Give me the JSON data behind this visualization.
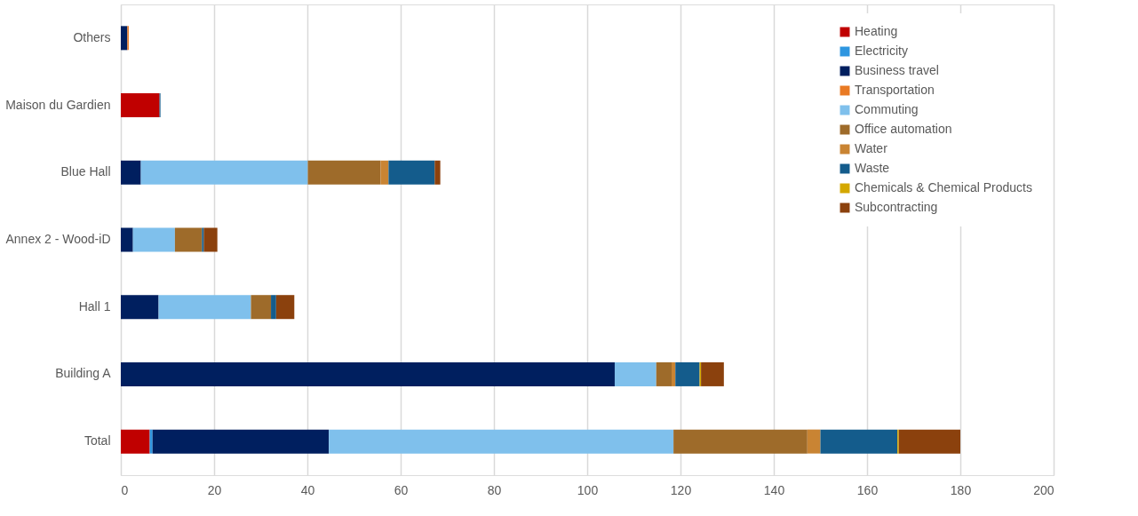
{
  "chart_data": {
    "type": "bar",
    "orientation": "horizontal",
    "stacked": true,
    "categories": [
      "Others",
      "Maison du Gardien",
      "Blue Hall",
      "Annex 2 - Wood-iD",
      "Hall 1",
      "Building A",
      "Total"
    ],
    "series": [
      {
        "name": "Heating",
        "color": "#c00000",
        "values": [
          null,
          8.3,
          null,
          null,
          null,
          null,
          6.2
        ]
      },
      {
        "name": "Electricity",
        "color": "#2e96e0",
        "values": [
          null,
          null,
          null,
          null,
          null,
          null,
          0.6
        ]
      },
      {
        "name": "Business travel",
        "color": "#001f5f",
        "values": [
          1.4,
          null,
          4.3,
          2.6,
          8.1,
          105.9,
          37.8
        ]
      },
      {
        "name": "Transportation",
        "color": "#e97a24",
        "values": [
          0.3,
          null,
          null,
          null,
          null,
          null,
          null
        ]
      },
      {
        "name": "Commuting",
        "color": "#7fc0ec",
        "values": [
          null,
          null,
          35.8,
          9.0,
          19.8,
          8.9,
          73.9
        ]
      },
      {
        "name": "Office automation",
        "color": "#9e6b2a",
        "values": [
          null,
          null,
          15.6,
          5.8,
          4.3,
          3.3,
          28.7
        ]
      },
      {
        "name": "Water",
        "color": "#c98433",
        "values": [
          null,
          null,
          1.7,
          null,
          null,
          0.8,
          2.8
        ]
      },
      {
        "name": "Waste",
        "color": "#145c8c",
        "values": [
          null,
          0.2,
          9.9,
          0.4,
          1.1,
          5.2,
          16.5
        ]
      },
      {
        "name": "Chemicals & Chemical Products",
        "color": "#d4a800",
        "values": [
          null,
          null,
          null,
          null,
          null,
          0.3,
          0.3
        ]
      },
      {
        "name": "Subcontracting",
        "color": "#8b410d",
        "values": [
          null,
          null,
          1.2,
          2.9,
          3.9,
          4.9,
          13.2
        ]
      }
    ],
    "xlim": [
      0,
      200
    ],
    "xticks": [
      0,
      20,
      40,
      60,
      80,
      100,
      120,
      140,
      160,
      180,
      200
    ],
    "grid": "x",
    "legend": "top right"
  }
}
